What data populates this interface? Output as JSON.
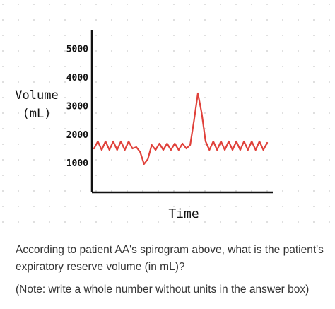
{
  "chart_data": {
    "type": "line",
    "y_label": "Volume (mL)",
    "x_label": "Time",
    "ylim": [
      0,
      5700
    ],
    "yticks": [
      1000,
      2000,
      3000,
      4000,
      5000
    ],
    "categories": [
      null,
      null,
      null,
      null,
      null,
      null,
      null,
      null,
      null,
      null,
      null,
      null,
      null,
      null,
      null,
      null,
      null,
      null,
      null,
      null,
      null,
      null,
      null,
      null,
      null,
      null,
      null,
      null,
      null,
      null,
      null,
      null,
      null,
      null,
      null,
      null,
      null,
      null,
      null,
      null,
      null,
      null,
      null,
      null,
      null,
      null
    ],
    "series": [
      {
        "color": "#e0413a",
        "values": [
          1537,
          1784,
          1487,
          1784,
          1487,
          1784,
          1487,
          1784,
          1487,
          1784,
          1537,
          1586,
          1413,
          991,
          1165,
          1660,
          1487,
          1710,
          1487,
          1710,
          1487,
          1710,
          1487,
          1710,
          1537,
          1660,
          2528,
          3470,
          2776,
          1784,
          1487,
          1784,
          1487,
          1784,
          1487,
          1784,
          1487,
          1784,
          1487,
          1784,
          1487,
          1784,
          1487,
          1784,
          1487,
          1735
        ]
      }
    ]
  },
  "question": "According to patient AA's spirogram above, what is the patient's expiratory reserve volume (in mL)?",
  "note": "(Note: write a whole number without units in the answer box)"
}
